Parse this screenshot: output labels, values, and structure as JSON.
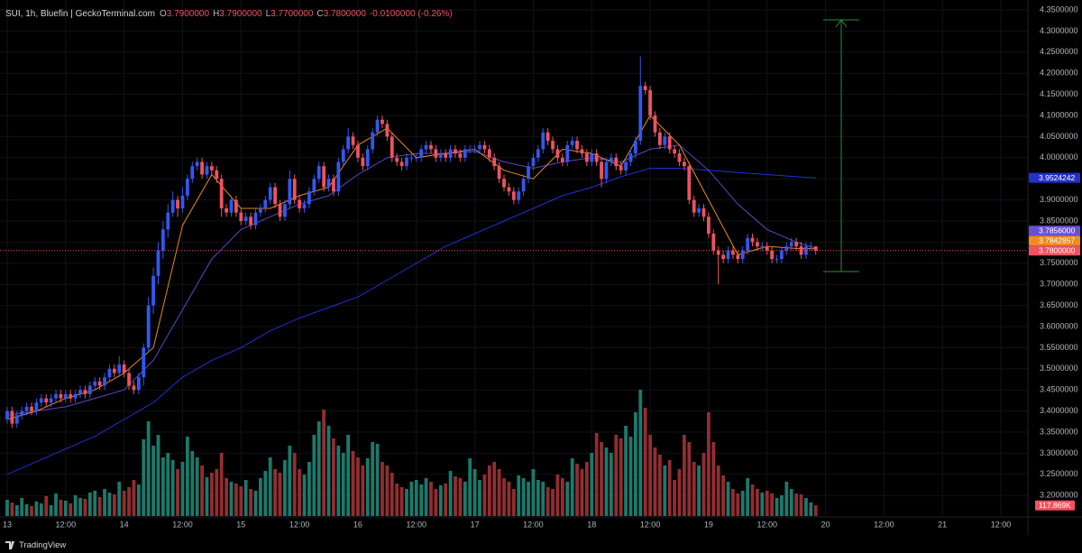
{
  "chart_data": {
    "type": "candlestick",
    "legend": {
      "symbol": "SUI, 1h, Bluefin | GeckoTerminal.com",
      "items": [
        {
          "key": "O",
          "value": 3.79,
          "label": "3.7900000"
        },
        {
          "key": "H",
          "value": 3.79,
          "label": "3.7900000"
        },
        {
          "key": "L",
          "value": 3.77,
          "label": "3.7700000"
        },
        {
          "key": "C",
          "value": 3.78,
          "label": "3.7800000"
        }
      ],
      "change": "-0.0100000 (-0.26%)"
    },
    "brand": "TradingView",
    "colors": {
      "up": "#3158f0",
      "down": "#f0525f",
      "volume_up": "#1b7a6c",
      "volume_down": "#932d31",
      "grid": "#111318",
      "price_line": "#f0525f"
    },
    "grid": true,
    "open": [
      3.38,
      3.4,
      3.37,
      3.39,
      3.4,
      3.41,
      3.4,
      3.42,
      3.43,
      3.42,
      3.43,
      3.44,
      3.43,
      3.44,
      3.43,
      3.44,
      3.45,
      3.44,
      3.46,
      3.47,
      3.46,
      3.48,
      3.5,
      3.49,
      3.51,
      3.49,
      3.46,
      3.45,
      3.48,
      3.55,
      3.65,
      3.72,
      3.78,
      3.83,
      3.87,
      3.9,
      3.88,
      3.91,
      3.95,
      3.98,
      3.99,
      3.96,
      3.98,
      3.97,
      3.95,
      3.88,
      3.87,
      3.9,
      3.87,
      3.85,
      3.86,
      3.84,
      3.87,
      3.88,
      3.9,
      3.93,
      3.89,
      3.86,
      3.89,
      3.95,
      3.9,
      3.88,
      3.89,
      3.92,
      3.95,
      3.98,
      3.93,
      3.95,
      3.92,
      3.99,
      4.02,
      4.05,
      4.03,
      4.0,
      3.98,
      4.02,
      4.06,
      4.09,
      4.08,
      4.05,
      4.0,
      3.99,
      3.98,
      4.0,
      4.0,
      4.0,
      4.02,
      4.03,
      4.02,
      4.0,
      4.01,
      4.0,
      4.02,
      4.01,
      4.0,
      4.02,
      4.02,
      4.02,
      4.03,
      4.02,
      4.0,
      3.98,
      3.95,
      3.93,
      3.92,
      3.9,
      3.92,
      3.95,
      3.98,
      4.0,
      4.02,
      4.06,
      4.04,
      4.02,
      4.0,
      3.99,
      4.03,
      4.04,
      4.02,
      4.01,
      3.99,
      4.01,
      3.99,
      3.95,
      3.99,
      4.0,
      3.98,
      3.97,
      3.99,
      4.01,
      4.04,
      4.17,
      4.16,
      4.1,
      4.06,
      4.03,
      4.05,
      4.02,
      4.01,
      3.99,
      3.98,
      3.9,
      3.87,
      3.88,
      3.86,
      3.82,
      3.78,
      3.77,
      3.76,
      3.78,
      3.77,
      3.76,
      3.78,
      3.81,
      3.8,
      3.79,
      3.79,
      3.78,
      3.76,
      3.76,
      3.78,
      3.79,
      3.8,
      3.79,
      3.77,
      3.79,
      3.79
    ],
    "high": [
      3.41,
      3.41,
      3.4,
      3.41,
      3.42,
      3.42,
      3.43,
      3.44,
      3.44,
      3.44,
      3.45,
      3.45,
      3.45,
      3.45,
      3.45,
      3.46,
      3.46,
      3.47,
      3.48,
      3.48,
      3.49,
      3.51,
      3.51,
      3.53,
      3.52,
      3.5,
      3.47,
      3.49,
      3.56,
      3.67,
      3.74,
      3.8,
      3.85,
      3.89,
      3.92,
      3.91,
      3.93,
      3.96,
      3.99,
      4.0,
      4.0,
      3.99,
      3.99,
      3.98,
      3.96,
      3.89,
      3.91,
      3.91,
      3.88,
      3.87,
      3.87,
      3.88,
      3.89,
      3.91,
      3.94,
      3.94,
      3.9,
      3.9,
      3.97,
      3.96,
      3.91,
      3.9,
      3.93,
      3.96,
      3.99,
      3.99,
      3.96,
      3.96,
      4.0,
      4.03,
      4.07,
      4.06,
      4.04,
      4.01,
      4.03,
      4.07,
      4.1,
      4.1,
      4.09,
      4.06,
      4.01,
      4.0,
      4.01,
      4.01,
      4.01,
      4.03,
      4.04,
      4.04,
      4.03,
      4.02,
      4.02,
      4.03,
      4.03,
      4.02,
      4.03,
      4.03,
      4.03,
      4.04,
      4.04,
      4.03,
      4.01,
      3.99,
      3.96,
      3.94,
      3.93,
      3.93,
      3.96,
      3.99,
      4.01,
      4.03,
      4.07,
      4.07,
      4.05,
      4.03,
      4.01,
      4.04,
      4.05,
      4.05,
      4.03,
      4.02,
      4.02,
      4.02,
      4.0,
      4.0,
      4.01,
      4.01,
      3.99,
      4.0,
      4.02,
      4.05,
      4.24,
      4.18,
      4.17,
      4.11,
      4.07,
      4.06,
      4.06,
      4.03,
      4.02,
      4.0,
      3.99,
      3.91,
      3.89,
      3.89,
      3.87,
      3.83,
      3.79,
      3.78,
      3.79,
      3.79,
      3.78,
      3.79,
      3.82,
      3.82,
      3.81,
      3.8,
      3.8,
      3.79,
      3.77,
      3.79,
      3.8,
      3.81,
      3.81,
      3.8,
      3.8,
      3.8,
      3.79
    ],
    "low": [
      3.37,
      3.36,
      3.36,
      3.38,
      3.39,
      3.39,
      3.39,
      3.41,
      3.41,
      3.41,
      3.42,
      3.42,
      3.42,
      3.42,
      3.42,
      3.43,
      3.43,
      3.43,
      3.45,
      3.45,
      3.45,
      3.47,
      3.48,
      3.48,
      3.48,
      3.45,
      3.44,
      3.44,
      3.46,
      3.54,
      3.63,
      3.7,
      3.76,
      3.81,
      3.86,
      3.86,
      3.87,
      3.9,
      3.94,
      3.97,
      3.95,
      3.95,
      3.96,
      3.94,
      3.86,
      3.86,
      3.86,
      3.86,
      3.84,
      3.84,
      3.83,
      3.83,
      3.86,
      3.87,
      3.89,
      3.88,
      3.85,
      3.85,
      3.88,
      3.89,
      3.87,
      3.87,
      3.88,
      3.91,
      3.94,
      3.92,
      3.92,
      3.91,
      3.91,
      3.98,
      4.01,
      4.02,
      3.99,
      3.97,
      3.97,
      4.01,
      4.05,
      4.07,
      4.04,
      3.99,
      3.98,
      3.97,
      3.97,
      3.99,
      3.99,
      3.99,
      4.01,
      4.01,
      3.99,
      3.99,
      3.99,
      3.99,
      4.0,
      3.99,
      3.99,
      4.01,
      4.01,
      4.01,
      4.01,
      3.99,
      3.97,
      3.94,
      3.92,
      3.91,
      3.89,
      3.89,
      3.91,
      3.94,
      3.97,
      3.99,
      4.01,
      4.03,
      4.01,
      3.99,
      3.98,
      3.98,
      4.02,
      4.01,
      4.0,
      3.98,
      3.98,
      3.98,
      3.93,
      3.94,
      3.98,
      3.97,
      3.96,
      3.96,
      3.98,
      4.0,
      4.03,
      4.15,
      4.09,
      4.05,
      4.02,
      4.02,
      4.01,
      4.0,
      3.98,
      3.97,
      3.89,
      3.86,
      3.86,
      3.85,
      3.81,
      3.77,
      3.7,
      3.75,
      3.75,
      3.76,
      3.75,
      3.75,
      3.77,
      3.79,
      3.78,
      3.78,
      3.77,
      3.75,
      3.75,
      3.75,
      3.77,
      3.78,
      3.78,
      3.76,
      3.76,
      3.78,
      3.77
    ],
    "close": [
      3.4,
      3.37,
      3.39,
      3.4,
      3.41,
      3.4,
      3.42,
      3.43,
      3.42,
      3.43,
      3.44,
      3.43,
      3.44,
      3.43,
      3.44,
      3.45,
      3.44,
      3.46,
      3.47,
      3.46,
      3.48,
      3.5,
      3.49,
      3.51,
      3.49,
      3.46,
      3.45,
      3.48,
      3.55,
      3.65,
      3.72,
      3.78,
      3.83,
      3.87,
      3.9,
      3.88,
      3.91,
      3.95,
      3.98,
      3.99,
      3.96,
      3.98,
      3.97,
      3.95,
      3.88,
      3.87,
      3.9,
      3.87,
      3.85,
      3.86,
      3.84,
      3.87,
      3.88,
      3.9,
      3.93,
      3.89,
      3.86,
      3.89,
      3.95,
      3.9,
      3.88,
      3.89,
      3.92,
      3.95,
      3.98,
      3.93,
      3.95,
      3.92,
      3.99,
      4.02,
      4.05,
      4.03,
      4.0,
      3.98,
      4.02,
      4.06,
      4.09,
      4.08,
      4.05,
      4.0,
      3.99,
      3.98,
      4.0,
      4.0,
      4.0,
      4.02,
      4.03,
      4.02,
      4.0,
      4.01,
      4.0,
      4.02,
      4.01,
      4.0,
      4.02,
      4.02,
      4.02,
      4.03,
      4.02,
      4.0,
      3.98,
      3.95,
      3.93,
      3.92,
      3.9,
      3.92,
      3.95,
      3.98,
      4.0,
      4.02,
      4.06,
      4.04,
      4.02,
      4.0,
      3.99,
      4.03,
      4.04,
      4.02,
      4.01,
      3.99,
      4.01,
      3.99,
      3.95,
      3.99,
      4.0,
      3.98,
      3.97,
      3.99,
      4.01,
      4.04,
      4.17,
      4.16,
      4.1,
      4.06,
      4.03,
      4.05,
      4.02,
      4.01,
      3.99,
      3.98,
      3.9,
      3.87,
      3.88,
      3.86,
      3.82,
      3.78,
      3.77,
      3.76,
      3.78,
      3.77,
      3.76,
      3.78,
      3.81,
      3.8,
      3.79,
      3.79,
      3.78,
      3.76,
      3.76,
      3.78,
      3.79,
      3.8,
      3.79,
      3.77,
      3.79,
      3.79,
      3.78
    ],
    "volume": [
      180,
      150,
      120,
      200,
      130,
      110,
      160,
      140,
      220,
      120,
      250,
      180,
      170,
      140,
      230,
      200,
      190,
      260,
      280,
      210,
      300,
      260,
      240,
      380,
      280,
      320,
      400,
      350,
      850,
      1050,
      780,
      900,
      650,
      700,
      620,
      520,
      600,
      880,
      720,
      650,
      560,
      430,
      480,
      520,
      700,
      420,
      380,
      360,
      330,
      400,
      300,
      280,
      420,
      500,
      650,
      520,
      480,
      620,
      780,
      700,
      520,
      460,
      600,
      900,
      1050,
      1180,
      1000,
      860,
      780,
      700,
      900,
      720,
      650,
      560,
      640,
      820,
      800,
      600,
      560,
      480,
      360,
      320,
      300,
      380,
      400,
      350,
      420,
      380,
      300,
      340,
      360,
      500,
      440,
      420,
      380,
      640,
      520,
      400,
      460,
      560,
      600,
      520,
      420,
      380,
      300,
      450,
      420,
      380,
      520,
      400,
      380,
      320,
      300,
      460,
      420,
      380,
      640,
      580,
      520,
      600,
      700,
      920,
      820,
      760,
      700,
      900,
      860,
      1000,
      880,
      1150,
      1400,
      1200,
      900,
      760,
      680,
      560,
      620,
      400,
      520,
      900,
      820,
      600,
      560,
      700,
      1150,
      820,
      560,
      450,
      380,
      300,
      250,
      280,
      420,
      350,
      300,
      260,
      280,
      250,
      200,
      230,
      380,
      300,
      250,
      240,
      200,
      150,
      117.869
    ],
    "last_volume_label": "117.869K",
    "vlim": [
      0,
      1400
    ],
    "lines": [
      {
        "color": "#1f2fd6",
        "x": [
          0,
          6,
          12,
          18,
          24,
          30,
          36,
          42,
          48,
          54,
          60,
          66,
          72,
          78,
          84,
          90,
          96,
          102,
          108,
          114,
          120,
          126,
          132,
          138,
          144,
          150,
          156,
          162,
          166
        ],
        "values": [
          3.25,
          3.28,
          3.31,
          3.34,
          3.38,
          3.42,
          3.48,
          3.52,
          3.55,
          3.59,
          3.62,
          3.645,
          3.67,
          3.71,
          3.75,
          3.79,
          3.82,
          3.85,
          3.88,
          3.91,
          3.93,
          3.955,
          3.975,
          3.975,
          3.97,
          3.965,
          3.96,
          3.955,
          3.9524242
        ]
      },
      {
        "color": "#5c46c8",
        "x": [
          0,
          6,
          12,
          18,
          24,
          30,
          36,
          42,
          48,
          54,
          60,
          66,
          72,
          78,
          84,
          90,
          96,
          102,
          108,
          114,
          120,
          126,
          132,
          138,
          144,
          150,
          156,
          162,
          166
        ],
        "values": [
          3.39,
          3.4,
          3.41,
          3.43,
          3.45,
          3.52,
          3.64,
          3.76,
          3.83,
          3.86,
          3.89,
          3.91,
          3.96,
          4.0,
          4.01,
          4.01,
          4.015,
          3.99,
          3.975,
          3.99,
          4.0,
          3.99,
          4.02,
          4.03,
          3.97,
          3.89,
          3.83,
          3.8,
          3.7856
        ]
      },
      {
        "color": "#e8891c",
        "x": [
          0,
          6,
          12,
          18,
          24,
          30,
          36,
          42,
          48,
          54,
          60,
          66,
          72,
          78,
          84,
          90,
          96,
          102,
          108,
          114,
          120,
          126,
          132,
          138,
          144,
          150,
          156,
          162,
          166
        ],
        "values": [
          3.38,
          3.4,
          3.43,
          3.45,
          3.49,
          3.55,
          3.84,
          3.96,
          3.88,
          3.88,
          3.91,
          3.93,
          4.03,
          4.07,
          4.0,
          4.01,
          4.02,
          3.97,
          3.95,
          4.02,
          4.01,
          3.98,
          4.1,
          4.03,
          3.9,
          3.77,
          3.79,
          3.785,
          3.7842857
        ]
      }
    ],
    "price_labels": [
      {
        "value": 3.9524242,
        "color": "#2331c8"
      },
      {
        "value": 3.7856,
        "label": "3.7856000",
        "color": "#6a4fd6"
      },
      {
        "value": 3.7842857,
        "color": "#f28a1e"
      },
      {
        "value": 3.78,
        "label": "3.7800000",
        "color": "#f0525f"
      }
    ],
    "xlim": [
      -1.48,
      209.55
    ],
    "xticks": [
      {
        "value": 0,
        "label": "13"
      },
      {
        "value": 12,
        "label": "12:00"
      },
      {
        "value": 24,
        "label": "14"
      },
      {
        "value": 36,
        "label": "12:00"
      },
      {
        "value": 48,
        "label": "15"
      },
      {
        "value": 60,
        "label": "12:00"
      },
      {
        "value": 72,
        "label": "16"
      },
      {
        "value": 84,
        "label": "12:00"
      },
      {
        "value": 96,
        "label": "17"
      },
      {
        "value": 108,
        "label": "12:00"
      },
      {
        "value": 120,
        "label": "18"
      },
      {
        "value": 132,
        "label": "12:00"
      },
      {
        "value": 144,
        "label": "19"
      },
      {
        "value": 156,
        "label": "12:00"
      },
      {
        "value": 168,
        "label": "20"
      },
      {
        "value": 180,
        "label": "12:00"
      },
      {
        "value": 192,
        "label": "21"
      },
      {
        "value": 204,
        "label": "12:00"
      }
    ],
    "ylim": [
      3.1513,
      4.3735
    ],
    "yticks": [
      {
        "value": 3.2,
        "label": "3.2000000"
      },
      {
        "value": 3.25,
        "label": "3.2500000"
      },
      {
        "value": 3.3,
        "label": "3.3000000"
      },
      {
        "value": 3.35,
        "label": "3.3500000"
      },
      {
        "value": 3.4,
        "label": "3.4000000"
      },
      {
        "value": 3.45,
        "label": "3.4500000"
      },
      {
        "value": 3.5,
        "label": "3.5000000"
      },
      {
        "value": 3.55,
        "label": "3.5500000"
      },
      {
        "value": 3.6,
        "label": "3.6000000"
      },
      {
        "value": 3.65,
        "label": "3.6500000"
      },
      {
        "value": 3.7,
        "label": "3.7000000"
      },
      {
        "value": 3.75,
        "label": "3.7500000"
      },
      {
        "value": 3.8,
        "label": "3.8000000"
      },
      {
        "value": 3.85,
        "label": "3.8500000"
      },
      {
        "value": 3.9,
        "label": "3.9000000"
      },
      {
        "value": 3.95,
        "label": "3.9500000"
      },
      {
        "value": 4.0,
        "label": "4.0000000"
      },
      {
        "value": 4.05,
        "label": "4.0500000"
      },
      {
        "value": 4.1,
        "label": "4.1000000"
      },
      {
        "value": 4.15,
        "label": "4.1500000"
      },
      {
        "value": 4.2,
        "label": "4.2000000"
      },
      {
        "value": 4.25,
        "label": "4.2500000"
      },
      {
        "value": 4.3,
        "label": "4.3000000"
      },
      {
        "value": 4.35,
        "label": "4.3500000"
      }
    ]
  }
}
